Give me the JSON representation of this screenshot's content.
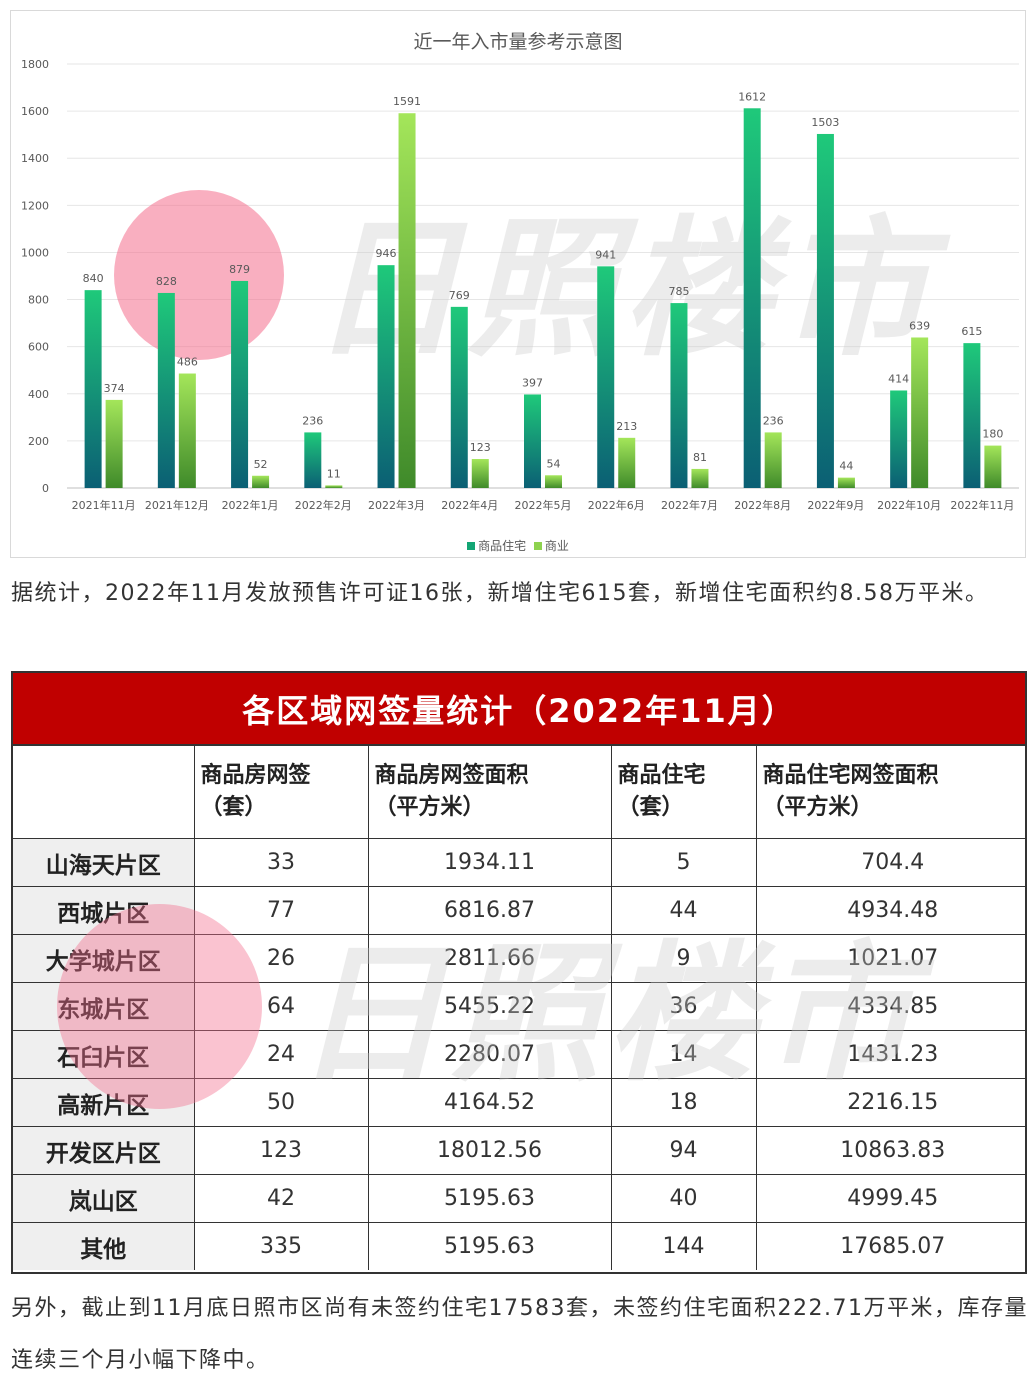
{
  "chart_data": {
    "type": "bar",
    "title": "近一年入市量参考示意图",
    "categories": [
      "2021年11月",
      "2021年12月",
      "2022年1月",
      "2022年2月",
      "2022年3月",
      "2022年4月",
      "2022年5月",
      "2022年6月",
      "2022年7月",
      "2022年8月",
      "2022年9月",
      "2022年10月",
      "2022年11月"
    ],
    "series": [
      {
        "name": "商品住宅",
        "values": [
          840,
          828,
          879,
          236,
          946,
          769,
          397,
          941,
          785,
          1612,
          1503,
          414,
          615
        ]
      },
      {
        "name": "商业",
        "values": [
          374,
          486,
          52,
          11,
          1591,
          123,
          54,
          213,
          81,
          236,
          44,
          639,
          180
        ]
      }
    ],
    "ylim": [
      0,
      1800
    ],
    "yticks": [
      0,
      200,
      400,
      600,
      800,
      1000,
      1200,
      1400,
      1600,
      1800
    ],
    "grid": true,
    "legend_position": "bottom",
    "colors": {
      "series1_top": "#1fc97a",
      "series1_bottom": "#0b5f74",
      "series2_top": "#a4e65a",
      "series2_bottom": "#3f8a2a"
    }
  },
  "watermark": "日照楼市",
  "para1": "据统计，2022年11月发放预售许可证16张，新增住宅615套，新增住宅面积约8.58万平米。",
  "table": {
    "title": "各区域网签量统计（2022年11月）",
    "headers": [
      "",
      "商品房网签（套）",
      "商品房网签面积（平方米）",
      "商品住宅（套）",
      "商品住宅网签面积（平方米）"
    ],
    "header_lines": [
      [
        "",
        ""
      ],
      [
        "商品房网签",
        "（套）"
      ],
      [
        "商品房网签面积",
        "（平方米）"
      ],
      [
        "商品住宅",
        "（套）"
      ],
      [
        "商品住宅网签面积",
        "（平方米）"
      ]
    ],
    "rows": [
      [
        "山海天片区",
        "33",
        "1934.11",
        "5",
        "704.4"
      ],
      [
        "西城片区",
        "77",
        "6816.87",
        "44",
        "4934.48"
      ],
      [
        "大学城片区",
        "26",
        "2811.66",
        "9",
        "1021.07"
      ],
      [
        "东城片区",
        "64",
        "5455.22",
        "36",
        "4334.85"
      ],
      [
        "石臼片区",
        "24",
        "2280.07",
        "14",
        "1431.23"
      ],
      [
        "高新片区",
        "50",
        "4164.52",
        "18",
        "2216.15"
      ],
      [
        "开发区片区",
        "123",
        "18012.56",
        "94",
        "10863.83"
      ],
      [
        "岚山区",
        "42",
        "5195.63",
        "40",
        "4999.45"
      ],
      [
        "其他",
        "335",
        "5195.63",
        "144",
        "17685.07"
      ]
    ]
  },
  "para2": "另外，截止到11月底日照市区尚有未签约住宅17583套，未签约住宅面积222.71万平米，库存量连续三个月小幅下降中。",
  "colors": {
    "table_title_bg": "#c00000",
    "first_col_bg": "#efefef"
  }
}
